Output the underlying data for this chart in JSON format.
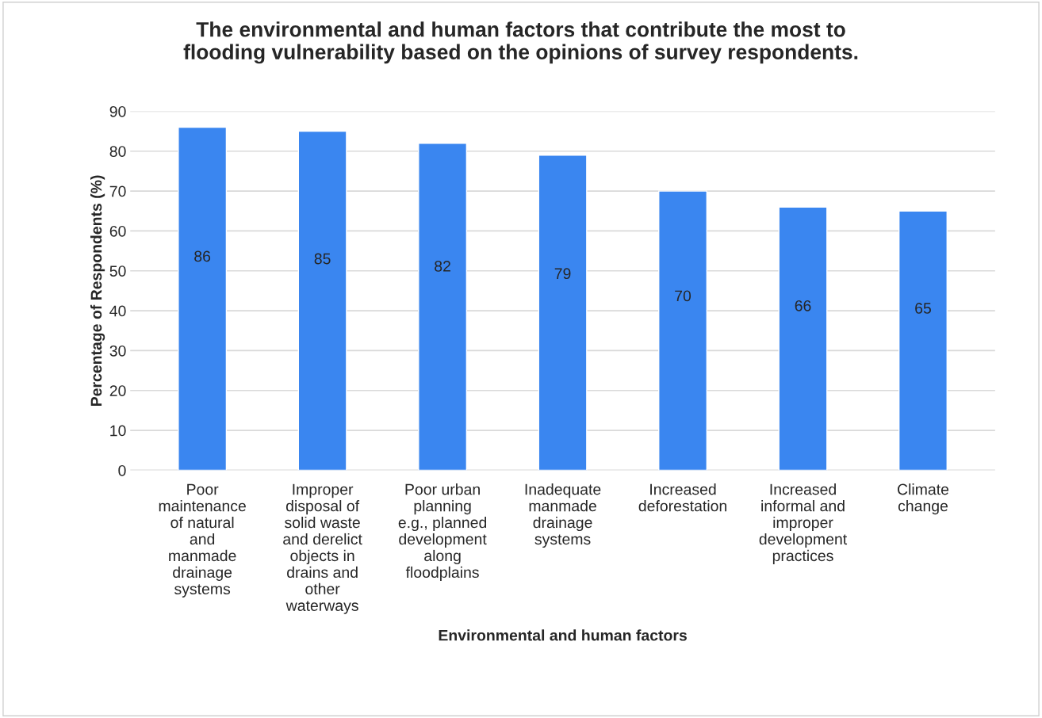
{
  "chart_data": {
    "type": "bar",
    "title": "The environmental and human factors that contribute the most to\nflooding vulnerability based on the opinions of survey respondents.",
    "xlabel": "Environmental and human factors",
    "ylabel": "Percentage of Respondents (%)",
    "categories": [
      "Poor\nmaintenance\nof natural\nand\nmanmade\ndrainage\nsystems",
      "Improper\ndisposal of\nsolid waste\nand derelict\nobjects in\ndrains and\nother\nwaterways",
      "Poor urban\nplanning\ne.g., planned\ndevelopment\nalong\nfloodplains",
      "Inadequate\nmanmade\ndrainage\nsystems",
      "Increased\ndeforestation",
      "Increased\ninformal and\nimproper\ndevelopment\npractices",
      "Climate\nchange"
    ],
    "values": [
      86,
      85,
      82,
      79,
      70,
      66,
      65
    ],
    "color": "#3a86f0",
    "ylim": [
      0,
      90
    ],
    "yticks": [
      0,
      10,
      20,
      30,
      40,
      50,
      60,
      70,
      80,
      90
    ],
    "grid": "y",
    "data_labels": true
  }
}
